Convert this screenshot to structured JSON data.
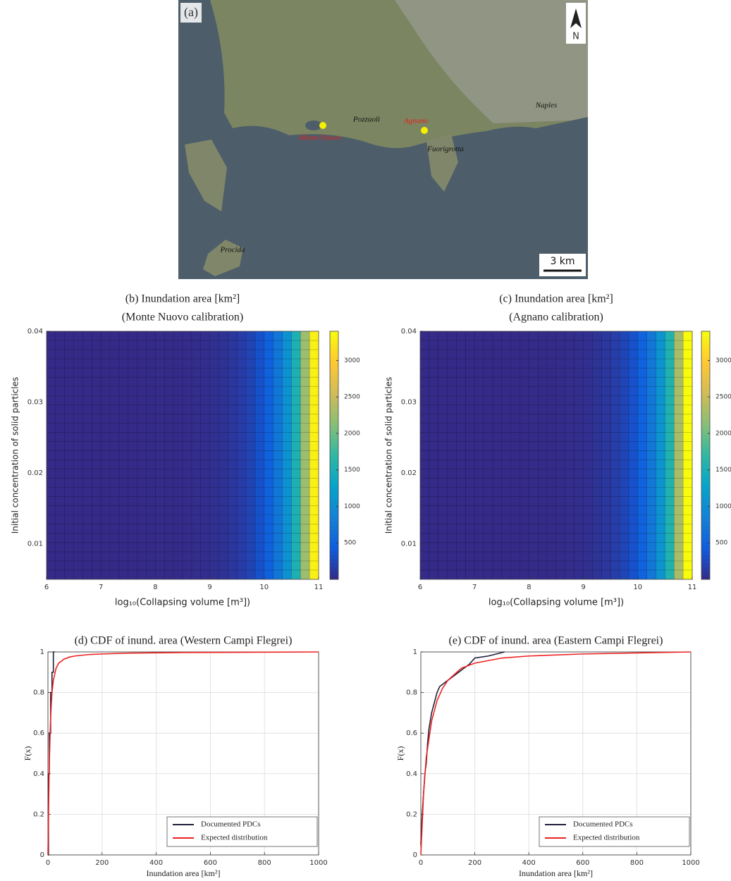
{
  "map": {
    "panel_label": "(a)",
    "north": "N",
    "scale_bar": "3 km",
    "places": [
      {
        "name": "Monte Nuovo",
        "color": "#e8201c"
      },
      {
        "name": "Pozzuoli",
        "color": "#111111"
      },
      {
        "name": "Agnano",
        "color": "#e8201c"
      },
      {
        "name": "Naples",
        "color": "#111111"
      },
      {
        "name": "Fuorigrotta",
        "color": "#111111"
      },
      {
        "name": "Procida",
        "color": "#111111"
      }
    ]
  },
  "chart_data": [
    {
      "type": "heatmap",
      "title": "(b) Inundation area [km²]",
      "subtitle": "(Monte Nuovo calibration)",
      "xlabel": "log₁₀(Collapsing volume [m³])",
      "ylabel": "Initial concentration of solid particles",
      "xlim": [
        6,
        11
      ],
      "xticks": [
        6,
        7,
        8,
        9,
        10,
        11
      ],
      "ylim": [
        0.005,
        0.04
      ],
      "yticks": [
        0.01,
        0.02,
        0.03,
        0.04
      ],
      "clim": [
        0,
        3400
      ],
      "cticks": [
        500,
        1000,
        1500,
        2000,
        2500,
        3000
      ],
      "colormap": "parula",
      "values": [
        1,
        1,
        1,
        1,
        1,
        1,
        1,
        1,
        1,
        1,
        2,
        3,
        5,
        7,
        10,
        15,
        23,
        33,
        49,
        71,
        105,
        154,
        225,
        331,
        485,
        712,
        1045,
        1530,
        2250,
        3300
      ]
    },
    {
      "type": "heatmap",
      "title": "(c) Inundation area [km²]",
      "subtitle": "(Agnano calibration)",
      "xlabel": "log₁₀(Collapsing volume [m³])",
      "ylabel": "Initial concentration of solid particles",
      "xlim": [
        6,
        11
      ],
      "xticks": [
        6,
        7,
        8,
        9,
        10,
        11
      ],
      "ylim": [
        0.005,
        0.04
      ],
      "yticks": [
        0.01,
        0.02,
        0.03,
        0.04
      ],
      "clim": [
        0,
        3400
      ],
      "cticks": [
        500,
        1000,
        1500,
        2000,
        2500,
        3000
      ],
      "colormap": "parula",
      "values": [
        1,
        1,
        1,
        1,
        1,
        1,
        1,
        1,
        1,
        1,
        2,
        3,
        5,
        7,
        10,
        16,
        24,
        34,
        50,
        73,
        108,
        159,
        232,
        341,
        500,
        733,
        1076,
        1576,
        2318,
        3400
      ]
    },
    {
      "type": "line",
      "title": "(d) CDF of inund. area (Western Campi Flegrei)",
      "xlabel": "Inundation area [km²]",
      "ylabel": "F(x)",
      "xlim": [
        0,
        1000
      ],
      "xticks": [
        0,
        200,
        400,
        600,
        800,
        1000
      ],
      "ylim": [
        0,
        1
      ],
      "yticks": [
        0,
        0.2,
        0.4,
        0.6,
        0.8,
        1
      ],
      "grid": true,
      "legend": "lower right",
      "series": [
        {
          "name": "Documented PDCs",
          "color": "#1f1f3a",
          "x": [
            0,
            2,
            2,
            5,
            5,
            10,
            10,
            15,
            15,
            20,
            20,
            25,
            25
          ],
          "values": [
            0,
            0,
            0.4,
            0.4,
            0.6,
            0.6,
            0.8,
            0.8,
            0.9,
            0.9,
            1,
            1,
            1
          ]
        },
        {
          "name": "Expected distribution",
          "color": "#ee2222",
          "x": [
            0,
            5,
            10,
            15,
            20,
            30,
            40,
            60,
            80,
            100,
            150,
            200,
            300,
            500,
            700,
            1000
          ],
          "values": [
            0,
            0.45,
            0.68,
            0.8,
            0.86,
            0.92,
            0.945,
            0.965,
            0.975,
            0.98,
            0.987,
            0.99,
            0.994,
            0.997,
            0.998,
            1
          ]
        }
      ]
    },
    {
      "type": "line",
      "title": "(e) CDF of inund. area (Eastern Campi Flegrei)",
      "xlabel": "Inundation area [km²]",
      "ylabel": "F(x)",
      "xlim": [
        0,
        1000
      ],
      "xticks": [
        0,
        200,
        400,
        600,
        800,
        1000
      ],
      "ylim": [
        0,
        1
      ],
      "yticks": [
        0,
        0.2,
        0.4,
        0.6,
        0.8,
        1
      ],
      "grid": true,
      "legend": "lower right",
      "series": [
        {
          "name": "Documented PDCs",
          "color": "#1f1f3a",
          "x": [
            0,
            5,
            10,
            15,
            20,
            25,
            30,
            40,
            50,
            60,
            70,
            80,
            100,
            120,
            140,
            160,
            180,
            200,
            250,
            310
          ],
          "values": [
            0.05,
            0.2,
            0.3,
            0.4,
            0.45,
            0.55,
            0.62,
            0.7,
            0.75,
            0.8,
            0.83,
            0.84,
            0.86,
            0.88,
            0.9,
            0.92,
            0.94,
            0.97,
            0.98,
            1
          ]
        },
        {
          "name": "Expected distribution",
          "color": "#ee2222",
          "x": [
            0,
            10,
            20,
            40,
            60,
            80,
            100,
            150,
            200,
            300,
            400,
            600,
            800,
            1000
          ],
          "values": [
            0,
            0.3,
            0.48,
            0.66,
            0.76,
            0.82,
            0.86,
            0.92,
            0.945,
            0.97,
            0.98,
            0.99,
            0.995,
            1
          ]
        }
      ]
    }
  ]
}
